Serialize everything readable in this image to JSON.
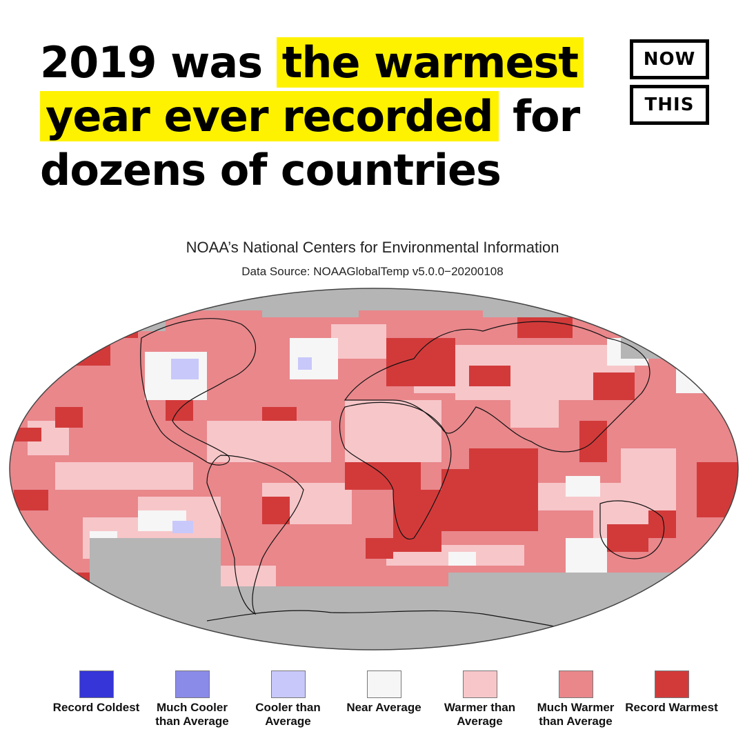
{
  "headline": {
    "prefix": "2019 was ",
    "highlight_1": "the warmest",
    "highlight_2": "year ever recorded",
    "suffix": " for",
    "line_3": "dozens of countries",
    "highlight_color": "#fff200"
  },
  "logo": {
    "top": "NOW",
    "bottom": "THIS"
  },
  "map": {
    "title": "NOAA’s National Centers for Environmental Information",
    "source": "Data Source: NOAAGlobalTemp v5.0.0−20200108",
    "no_data_color": "#b5b5b5",
    "land_outline_color": "#111111"
  },
  "legend": [
    {
      "label": "Record Coldest",
      "color": "#3535d8"
    },
    {
      "label": "Much Cooler than Average",
      "color": "#8a8ae8"
    },
    {
      "label": "Cooler than Average",
      "color": "#c8c8fb"
    },
    {
      "label": "Near Average",
      "color": "#f6f6f6"
    },
    {
      "label": "Warmer than Average",
      "color": "#f7c6c9"
    },
    {
      "label": "Much Warmer than Average",
      "color": "#e9878b"
    },
    {
      "label": "Record Warmest",
      "color": "#d23a3a"
    }
  ]
}
